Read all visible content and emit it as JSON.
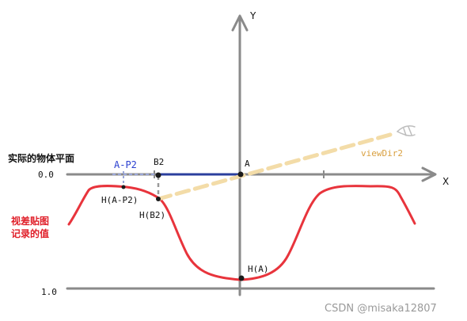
{
  "axes": {
    "x_label": "X",
    "y_label": "Y"
  },
  "levels": {
    "top_value": "0.0",
    "bottom_value": "1.0"
  },
  "labels": {
    "plane_title": "实际的物体平面",
    "heightmap_line1": "视差贴图",
    "heightmap_line2": "记录的值",
    "point_a": "A",
    "point_b2": "B2",
    "segment_a_p2": "A-P2",
    "h_a_p2": "H(A-P2)",
    "h_b2": "H(B2)",
    "h_a": "H(A)",
    "view_dir": "viewDir2"
  },
  "watermark": "CSDN @misaka12807",
  "colors": {
    "axis": "#8a8a8a",
    "height_curve": "#e8343c",
    "plane_segment": "#2b3f9e",
    "view_dir": "#f3dca8",
    "point": "#1a1a1a"
  }
}
